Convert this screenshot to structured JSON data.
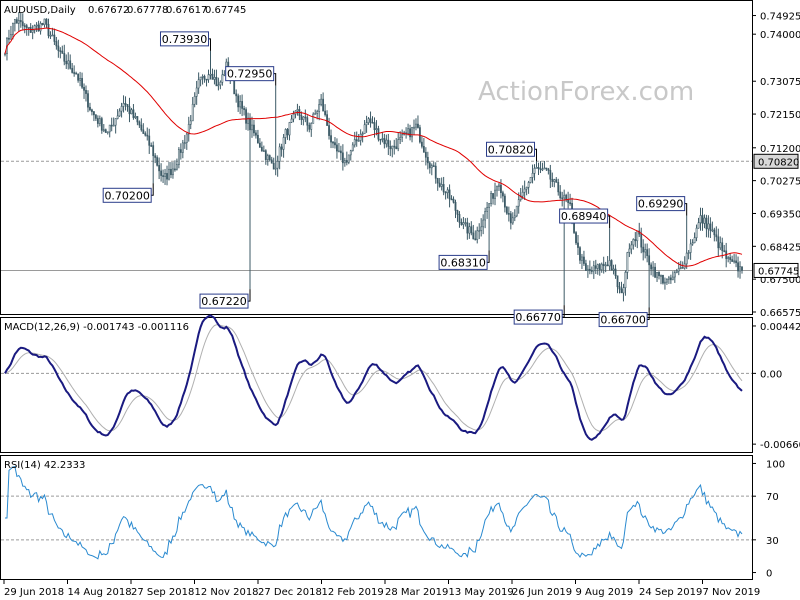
{
  "chart_data": {
    "type": "candlestick",
    "symbol": "AUDUSD",
    "timeframe": "Daily",
    "header": {
      "symbol_label": "AUDUSD,Daily",
      "ohlc": [
        "0.67672",
        "0.67778",
        "0.67617",
        "0.67745"
      ]
    },
    "watermark": "ActionForex.com",
    "price_axis": {
      "ylim": [
        0.66575,
        0.7525
      ],
      "tick_values": [
        0.74925,
        0.744,
        0.73075,
        0.7215,
        0.712,
        0.70275,
        0.6935,
        0.68425,
        0.675,
        0.66575
      ],
      "tick_labels": [
        "0.74925",
        "0.74000",
        "0.73075",
        "0.72150",
        "0.71200",
        "0.70275",
        "0.69350",
        "0.68425",
        "0.67500",
        "0.66575"
      ]
    },
    "x_labels": [
      "29 Jun 2018",
      "14 Aug 2018",
      "27 Sep 2018",
      "12 Nov 2018",
      "27 Dec 2018",
      "12 Feb 2019",
      "28 Mar 2019",
      "13 May 2019",
      "26 Jun 2019",
      "9 Aug 2019",
      "24 Sep 2019",
      "7 Nov 2019"
    ],
    "close_anchors": [
      [
        0,
        0.74
      ],
      [
        5,
        0.748
      ],
      [
        12,
        0.745
      ],
      [
        20,
        0.747
      ],
      [
        28,
        0.738
      ],
      [
        36,
        0.733
      ],
      [
        44,
        0.722
      ],
      [
        52,
        0.716
      ],
      [
        60,
        0.725
      ],
      [
        68,
        0.718
      ],
      [
        74,
        0.712
      ],
      [
        80,
        0.703
      ],
      [
        86,
        0.707
      ],
      [
        92,
        0.716
      ],
      [
        98,
        0.73
      ],
      [
        104,
        0.734
      ],
      [
        108,
        0.729
      ],
      [
        112,
        0.735
      ],
      [
        118,
        0.725
      ],
      [
        124,
        0.718
      ],
      [
        130,
        0.712
      ],
      [
        136,
        0.706
      ],
      [
        142,
        0.716
      ],
      [
        148,
        0.722
      ],
      [
        154,
        0.718
      ],
      [
        160,
        0.725
      ],
      [
        166,
        0.712
      ],
      [
        172,
        0.708
      ],
      [
        178,
        0.714
      ],
      [
        184,
        0.72
      ],
      [
        190,
        0.715
      ],
      [
        196,
        0.712
      ],
      [
        202,
        0.715
      ],
      [
        208,
        0.718
      ],
      [
        214,
        0.709
      ],
      [
        220,
        0.702
      ],
      [
        226,
        0.697
      ],
      [
        232,
        0.69
      ],
      [
        238,
        0.687
      ],
      [
        244,
        0.695
      ],
      [
        250,
        0.703
      ],
      [
        256,
        0.69
      ],
      [
        262,
        0.699
      ],
      [
        268,
        0.706
      ],
      [
        274,
        0.705
      ],
      [
        280,
        0.7
      ],
      [
        286,
        0.695
      ],
      [
        290,
        0.683
      ],
      [
        294,
        0.677
      ],
      [
        300,
        0.678
      ],
      [
        306,
        0.68
      ],
      [
        312,
        0.67
      ],
      [
        316,
        0.685
      ],
      [
        320,
        0.688
      ],
      [
        324,
        0.682
      ],
      [
        330,
        0.676
      ],
      [
        336,
        0.674
      ],
      [
        342,
        0.678
      ],
      [
        348,
        0.686
      ],
      [
        352,
        0.692
      ],
      [
        356,
        0.69
      ],
      [
        360,
        0.686
      ],
      [
        366,
        0.68
      ],
      [
        373,
        0.6775
      ]
    ],
    "sma": {
      "period": 55,
      "color": "#e00000"
    },
    "callouts": [
      {
        "label": "0.73930",
        "bar": 104,
        "value": 0.7393,
        "pos": "above"
      },
      {
        "label": "0.72950",
        "bar": 137,
        "value": 0.7295,
        "pos": "above"
      },
      {
        "label": "0.70200",
        "bar": 75,
        "value": 0.702,
        "pos": "below"
      },
      {
        "label": "0.67220",
        "bar": 124,
        "value": 0.6722,
        "pos": "below"
      },
      {
        "label": "0.70820",
        "bar": 269,
        "value": 0.7082,
        "pos": "above"
      },
      {
        "label": "0.68940",
        "bar": 306,
        "value": 0.6894,
        "pos": "above"
      },
      {
        "label": "0.68310",
        "bar": 245,
        "value": 0.6831,
        "pos": "below"
      },
      {
        "label": "0.66770",
        "bar": 283,
        "value": 0.6677,
        "pos": "below"
      },
      {
        "label": "0.66700",
        "bar": 326,
        "value": 0.667,
        "pos": "below"
      },
      {
        "label": "0.69290",
        "bar": 345,
        "value": 0.6929,
        "pos": "above"
      }
    ],
    "hlines": [
      {
        "value": 0.7082,
        "style": "dashed",
        "label": "0.70820",
        "label_bg": "#d8d8d8"
      },
      {
        "value": 0.67745,
        "style": "solid",
        "label": "0.67745",
        "label_bg": "#ffffff"
      }
    ],
    "macd": {
      "label": "MACD(12,26,9) -0.001743 -0.001116",
      "ylim": [
        -0.00715,
        0.00498
      ],
      "tick_values": [
        0.004423,
        0.0,
        -0.006603
      ],
      "tick_labels": [
        "0.004423",
        "0.00",
        "-0.006603"
      ],
      "line_color": "#1a1a80",
      "signal_color": "#b0b0b0"
    },
    "rsi": {
      "label": "RSI(14) 42.2333",
      "ylim": [
        -5,
        105
      ],
      "tick_values": [
        100,
        70,
        30,
        0
      ],
      "tick_labels": [
        "100",
        "70",
        "30",
        "0"
      ],
      "color": "#2a8ad0"
    },
    "colors": {
      "candle": "#3c5a66",
      "grid_dash": "#9a9a9a",
      "frame": "#000000"
    }
  }
}
